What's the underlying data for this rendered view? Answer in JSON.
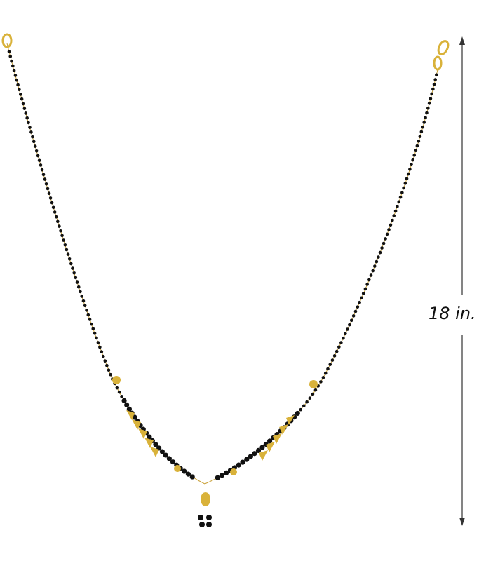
{
  "measurement": {
    "label": "18 in."
  },
  "colors": {
    "gold": "#d9b23a",
    "bead": "#111111",
    "arrow": "#333333"
  }
}
